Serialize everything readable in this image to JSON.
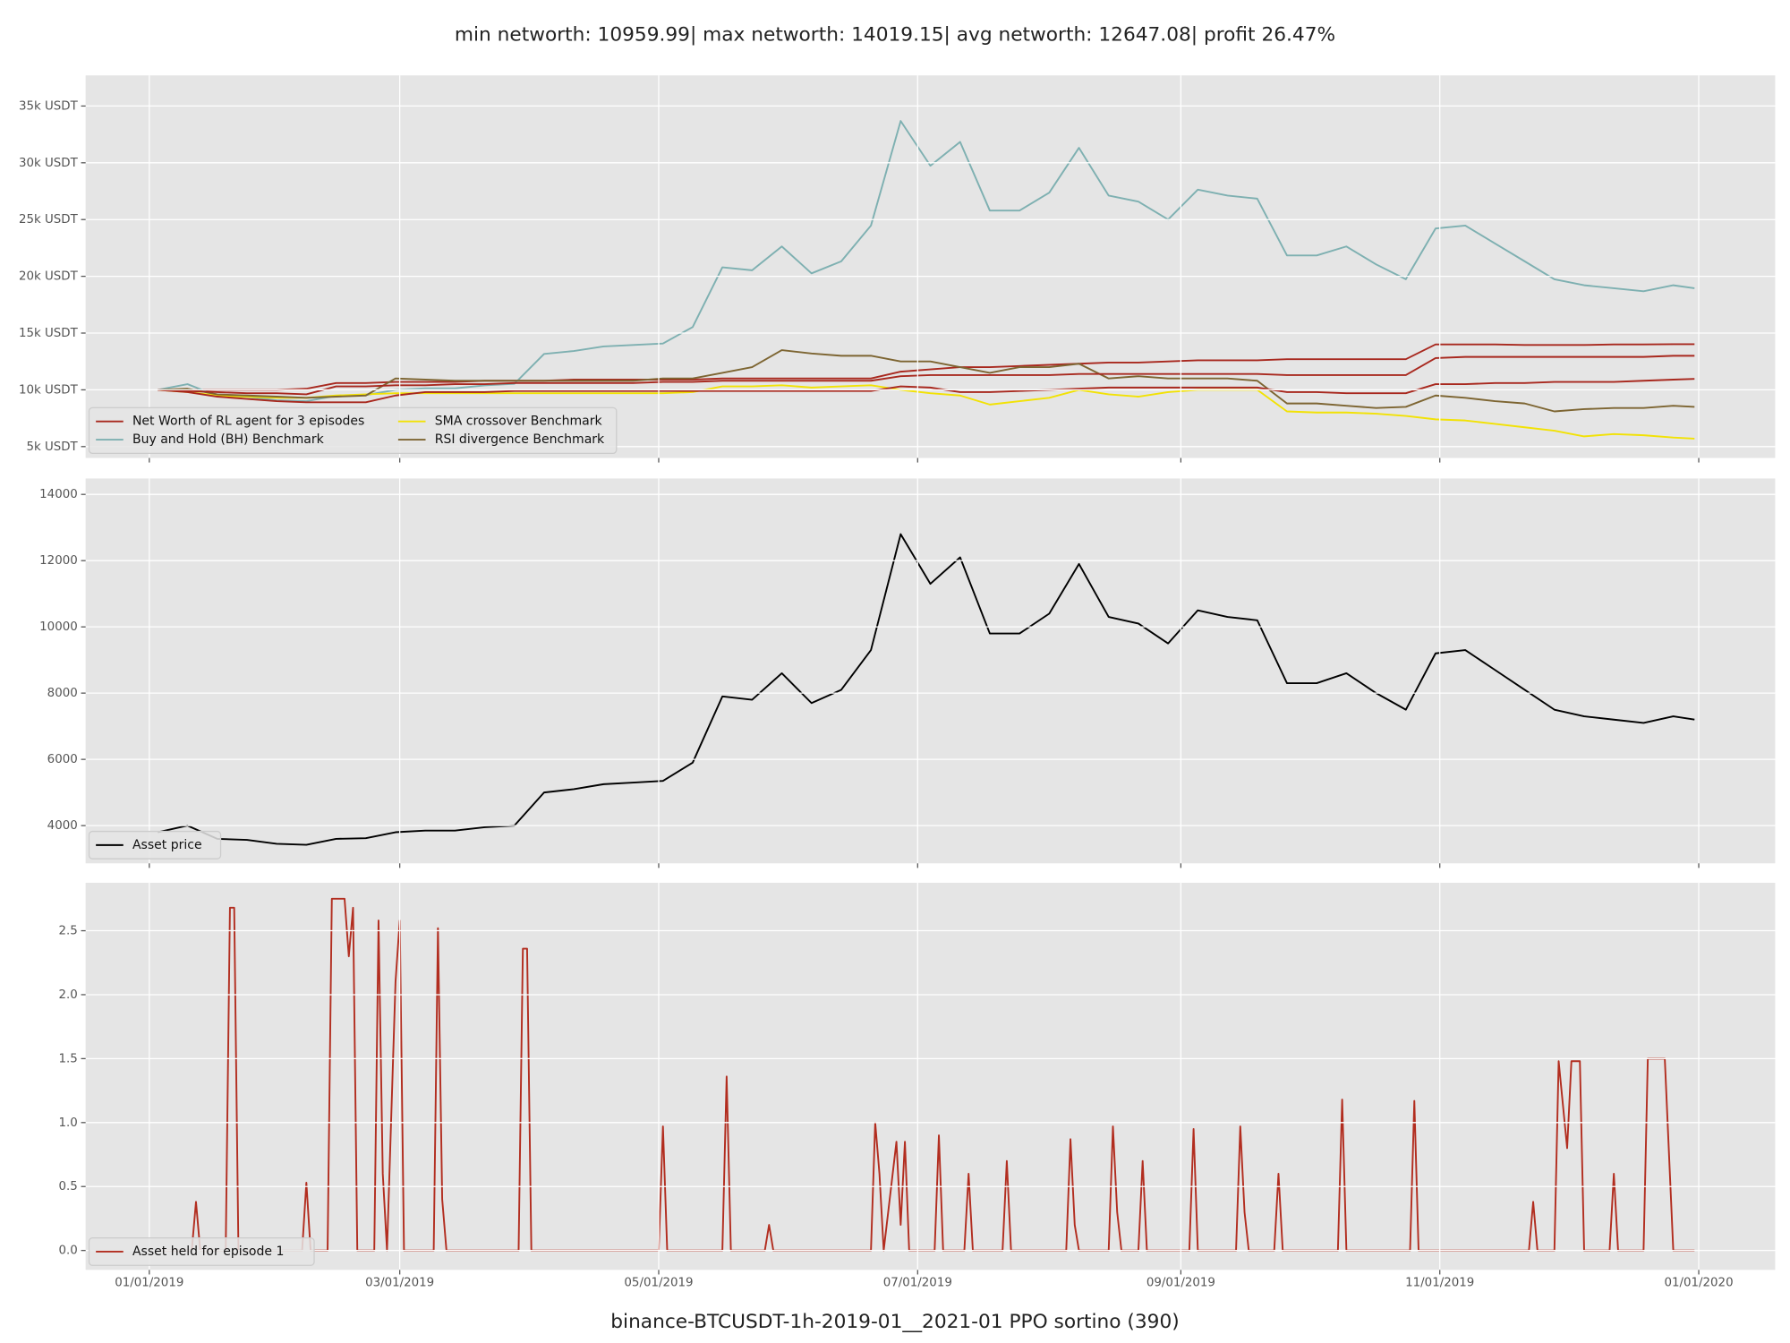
{
  "chart_data": [
    {
      "type": "line",
      "title": "min networth: 10959.99| max networth: 14019.15| avg networth: 12647.08| profit 26.47%",
      "x": [
        "2019-01-03",
        "2019-01-10",
        "2019-01-17",
        "2019-01-24",
        "2019-01-31",
        "2019-02-07",
        "2019-02-14",
        "2019-02-21",
        "2019-02-28",
        "2019-03-07",
        "2019-03-14",
        "2019-03-21",
        "2019-03-28",
        "2019-04-04",
        "2019-04-11",
        "2019-04-18",
        "2019-04-25",
        "2019-05-02",
        "2019-05-09",
        "2019-05-16",
        "2019-05-23",
        "2019-05-30",
        "2019-06-06",
        "2019-06-13",
        "2019-06-20",
        "2019-06-27",
        "2019-07-04",
        "2019-07-11",
        "2019-07-18",
        "2019-07-25",
        "2019-08-01",
        "2019-08-08",
        "2019-08-15",
        "2019-08-22",
        "2019-08-29",
        "2019-09-05",
        "2019-09-12",
        "2019-09-19",
        "2019-09-26",
        "2019-10-03",
        "2019-10-10",
        "2019-10-17",
        "2019-10-24",
        "2019-10-31",
        "2019-11-07",
        "2019-11-14",
        "2019-11-21",
        "2019-11-28",
        "2019-12-05",
        "2019-12-12",
        "2019-12-19",
        "2019-12-26",
        "2019-12-31"
      ],
      "series": [
        {
          "name": "Net Worth of RL agent for 3 episodes",
          "color": "#a8281e",
          "values": [
            10000,
            10000,
            10000,
            10000,
            10000,
            10100,
            10600,
            10600,
            10700,
            10700,
            10700,
            10800,
            10800,
            10800,
            10900,
            10900,
            10900,
            10900,
            10900,
            11000,
            11000,
            11000,
            11000,
            11000,
            11000,
            11600,
            11800,
            12000,
            12000,
            12100,
            12200,
            12300,
            12400,
            12400,
            12500,
            12600,
            12600,
            12600,
            12700,
            12700,
            12700,
            12700,
            12700,
            14000,
            14000,
            14000,
            13950,
            13950,
            13950,
            14000,
            14000,
            14020,
            14020
          ]
        },
        {
          "name": "Buy and Hold (BH) Benchmark",
          "color": "#7eb0b1",
          "values": [
            10000,
            10500,
            9470,
            9390,
            9080,
            9000,
            9470,
            9530,
            10000,
            10130,
            10130,
            10390,
            10530,
            13160,
            13420,
            13820,
            13950,
            14080,
            15530,
            20790,
            20530,
            22630,
            20260,
            21320,
            24470,
            33680,
            29740,
            31840,
            25790,
            25790,
            27370,
            31320,
            27110,
            26580,
            25000,
            27630,
            27110,
            26840,
            21840,
            21840,
            22630,
            21050,
            19740,
            24210,
            24470,
            22890,
            21320,
            19740,
            19210,
            18950,
            18680,
            19210,
            18950
          ]
        },
        {
          "name": "SMA crossover Benchmark",
          "color": "#f2e205",
          "values": [
            10000,
            9800,
            9500,
            9400,
            9300,
            9300,
            9500,
            9600,
            9700,
            9700,
            9700,
            9700,
            9700,
            9700,
            9700,
            9700,
            9700,
            9700,
            9800,
            10300,
            10300,
            10400,
            10200,
            10300,
            10400,
            10000,
            9700,
            9500,
            8700,
            9000,
            9300,
            10000,
            9600,
            9400,
            9800,
            10000,
            10000,
            10000,
            8100,
            8000,
            8000,
            7900,
            7700,
            7400,
            7300,
            7000,
            6700,
            6400,
            5900,
            6100,
            6000,
            5800,
            5700
          ]
        },
        {
          "name": "RSI divergence Benchmark",
          "color": "#7d6532",
          "values": [
            10000,
            10100,
            9600,
            9500,
            9400,
            9300,
            9400,
            9500,
            11000,
            10900,
            10800,
            10800,
            10800,
            10800,
            10800,
            10800,
            10800,
            11000,
            11000,
            11500,
            12000,
            13500,
            13200,
            13000,
            13000,
            12500,
            12500,
            12000,
            11500,
            12000,
            12000,
            12300,
            11000,
            11200,
            11000,
            11000,
            11000,
            10800,
            8800,
            8800,
            8600,
            8400,
            8500,
            9500,
            9300,
            9000,
            8800,
            8100,
            8300,
            8400,
            8400,
            8600,
            8500
          ]
        },
        {
          "color": "#a8281e",
          "values": [
            10000,
            9900,
            9800,
            9700,
            9700,
            9600,
            10300,
            10300,
            10400,
            10400,
            10500,
            10500,
            10600,
            10600,
            10600,
            10600,
            10600,
            10700,
            10700,
            10800,
            10800,
            10800,
            10800,
            10800,
            10800,
            11200,
            11300,
            11300,
            11300,
            11300,
            11300,
            11400,
            11400,
            11400,
            11400,
            11400,
            11400,
            11400,
            11300,
            11300,
            11300,
            11300,
            11300,
            12800,
            12900,
            12900,
            12900,
            12900,
            12900,
            12900,
            12900,
            13000,
            13000
          ]
        },
        {
          "color": "#a8281e",
          "values": [
            10000,
            9800,
            9400,
            9200,
            9000,
            8900,
            8900,
            8900,
            9500,
            9800,
            9800,
            9800,
            9900,
            9900,
            9900,
            9900,
            9900,
            9900,
            9900,
            9900,
            9900,
            9900,
            9900,
            9900,
            9900,
            10300,
            10200,
            9800,
            9800,
            9900,
            10000,
            10100,
            10200,
            10200,
            10200,
            10200,
            10200,
            10200,
            9800,
            9800,
            9700,
            9700,
            9700,
            10500,
            10500,
            10600,
            10600,
            10700,
            10700,
            10700,
            10800,
            10900,
            10960
          ]
        }
      ],
      "xlim": [
        "2018-12-17",
        "2020-01-19"
      ],
      "ylim": [
        4000,
        37700
      ],
      "yticks": [
        {
          "value": 5000,
          "label": "5k USDT"
        },
        {
          "value": 10000,
          "label": "10k USDT"
        },
        {
          "value": 15000,
          "label": "15k USDT"
        },
        {
          "value": 20000,
          "label": "20k USDT"
        },
        {
          "value": 25000,
          "label": "25k USDT"
        },
        {
          "value": 30000,
          "label": "30k USDT"
        },
        {
          "value": 35000,
          "label": "35k USDT"
        }
      ],
      "grid": true,
      "legend": "lower left"
    },
    {
      "type": "line",
      "x": [
        "2019-01-03",
        "2019-01-10",
        "2019-01-17",
        "2019-01-24",
        "2019-01-31",
        "2019-02-07",
        "2019-02-14",
        "2019-02-21",
        "2019-02-28",
        "2019-03-07",
        "2019-03-14",
        "2019-03-21",
        "2019-03-28",
        "2019-04-04",
        "2019-04-11",
        "2019-04-18",
        "2019-04-25",
        "2019-05-02",
        "2019-05-09",
        "2019-05-16",
        "2019-05-23",
        "2019-05-30",
        "2019-06-06",
        "2019-06-13",
        "2019-06-20",
        "2019-06-27",
        "2019-07-04",
        "2019-07-11",
        "2019-07-18",
        "2019-07-25",
        "2019-08-01",
        "2019-08-08",
        "2019-08-15",
        "2019-08-22",
        "2019-08-29",
        "2019-09-05",
        "2019-09-12",
        "2019-09-19",
        "2019-09-26",
        "2019-10-03",
        "2019-10-10",
        "2019-10-17",
        "2019-10-24",
        "2019-10-31",
        "2019-11-07",
        "2019-11-14",
        "2019-11-21",
        "2019-11-28",
        "2019-12-05",
        "2019-12-12",
        "2019-12-19",
        "2019-12-26",
        "2019-12-31"
      ],
      "series": [
        {
          "name": "Asset price",
          "color": "#000000",
          "values": [
            3800,
            4000,
            3600,
            3570,
            3450,
            3420,
            3600,
            3620,
            3800,
            3850,
            3850,
            3950,
            4000,
            5000,
            5100,
            5250,
            5300,
            5350,
            5900,
            7900,
            7800,
            8600,
            7700,
            8100,
            9300,
            12800,
            11300,
            12100,
            9800,
            9800,
            10400,
            11900,
            10300,
            10100,
            9500,
            10500,
            10300,
            10200,
            8300,
            8300,
            8600,
            8000,
            7500,
            9200,
            9300,
            8700,
            8100,
            7500,
            7300,
            7200,
            7100,
            7300,
            7200
          ]
        }
      ],
      "xlim": [
        "2018-12-17",
        "2020-01-19"
      ],
      "ylim": [
        2860,
        14480
      ],
      "yticks": [
        4000,
        6000,
        8000,
        10000,
        12000,
        14000
      ],
      "grid": true,
      "legend": "lower left"
    },
    {
      "type": "line",
      "xlabel": "binance-BTCUSDT-1h-2019-01__2021-01 PPO sortino  (390)",
      "x": [
        "2019-01-03",
        "2019-01-11",
        "2019-01-12",
        "2019-01-13",
        "2019-01-19",
        "2019-01-20",
        "2019-01-21",
        "2019-01-22",
        "2019-02-06",
        "2019-02-07",
        "2019-02-08",
        "2019-02-12",
        "2019-02-13",
        "2019-02-16",
        "2019-02-17",
        "2019-02-18",
        "2019-02-19",
        "2019-02-23",
        "2019-02-24",
        "2019-02-25",
        "2019-02-26",
        "2019-02-28",
        "2019-03-01",
        "2019-03-02",
        "2019-03-09",
        "2019-03-10",
        "2019-03-11",
        "2019-03-12",
        "2019-03-29",
        "2019-03-30",
        "2019-03-31",
        "2019-04-01",
        "2019-05-01",
        "2019-05-02",
        "2019-05-03",
        "2019-05-16",
        "2019-05-17",
        "2019-05-18",
        "2019-05-26",
        "2019-05-27",
        "2019-05-28",
        "2019-06-20",
        "2019-06-21",
        "2019-06-22",
        "2019-06-23",
        "2019-06-26",
        "2019-06-27",
        "2019-06-28",
        "2019-06-29",
        "2019-07-05",
        "2019-07-06",
        "2019-07-07",
        "2019-07-12",
        "2019-07-13",
        "2019-07-14",
        "2019-07-21",
        "2019-07-22",
        "2019-07-23",
        "2019-08-05",
        "2019-08-06",
        "2019-08-07",
        "2019-08-08",
        "2019-08-15",
        "2019-08-16",
        "2019-08-17",
        "2019-08-18",
        "2019-08-22",
        "2019-08-23",
        "2019-08-24",
        "2019-09-03",
        "2019-09-04",
        "2019-09-05",
        "2019-09-14",
        "2019-09-15",
        "2019-09-16",
        "2019-09-17",
        "2019-09-23",
        "2019-09-24",
        "2019-09-25",
        "2019-10-08",
        "2019-10-09",
        "2019-10-10",
        "2019-10-25",
        "2019-10-26",
        "2019-10-27",
        "2019-11-22",
        "2019-11-23",
        "2019-11-24",
        "2019-11-28",
        "2019-11-29",
        "2019-12-01",
        "2019-12-02",
        "2019-12-04",
        "2019-12-05",
        "2019-12-11",
        "2019-12-12",
        "2019-12-13",
        "2019-12-19",
        "2019-12-20",
        "2019-12-24",
        "2019-12-26",
        "2019-12-31"
      ],
      "series": [
        {
          "name": "Asset held for episode 1",
          "color": "#b22d1f",
          "values": [
            0,
            0,
            0.38,
            0,
            0,
            2.68,
            2.68,
            0,
            0,
            0.53,
            0,
            0,
            2.75,
            2.75,
            2.3,
            2.68,
            0,
            0,
            2.58,
            0.6,
            0,
            2.1,
            2.58,
            0,
            0,
            2.52,
            0.4,
            0,
            0,
            2.36,
            2.36,
            0,
            0,
            0.97,
            0,
            0,
            1.36,
            0,
            0,
            0.2,
            0,
            0,
            1,
            0.6,
            0,
            0.85,
            0.2,
            0.85,
            0,
            0,
            0.9,
            0,
            0,
            0.6,
            0,
            0,
            0.7,
            0,
            0,
            0.87,
            0.2,
            0,
            0,
            0.97,
            0.3,
            0,
            0,
            0.7,
            0,
            0,
            0.95,
            0,
            0,
            0.97,
            0.3,
            0,
            0,
            0.6,
            0,
            0,
            1.18,
            0,
            0,
            1.17,
            0,
            0,
            0.38,
            0,
            0,
            1.48,
            0.8,
            1.48,
            1.48,
            0,
            0,
            0.6,
            0,
            0,
            1.5,
            1.5,
            0,
            0
          ]
        }
      ],
      "xlim": [
        "2018-12-17",
        "2020-01-19"
      ],
      "ylim": [
        -0.152,
        2.875
      ],
      "yticks": [
        {
          "value": 0,
          "label": "0.0"
        },
        0.5,
        {
          "value": 1,
          "label": "1.0"
        },
        1.5,
        {
          "value": 2,
          "label": "2.0"
        },
        2.5
      ],
      "xticks": [
        {
          "value": "2019-01-01",
          "label": "01/01/2019"
        },
        {
          "value": "2019-03-01",
          "label": "03/01/2019"
        },
        {
          "value": "2019-05-01",
          "label": "05/01/2019"
        },
        {
          "value": "2019-07-01",
          "label": "07/01/2019"
        },
        {
          "value": "2019-09-01",
          "label": "09/01/2019"
        },
        {
          "value": "2019-11-01",
          "label": "11/01/2019"
        },
        {
          "value": "2020-01-01",
          "label": "01/01/2020"
        }
      ],
      "grid": true,
      "legend": "lower left"
    }
  ]
}
